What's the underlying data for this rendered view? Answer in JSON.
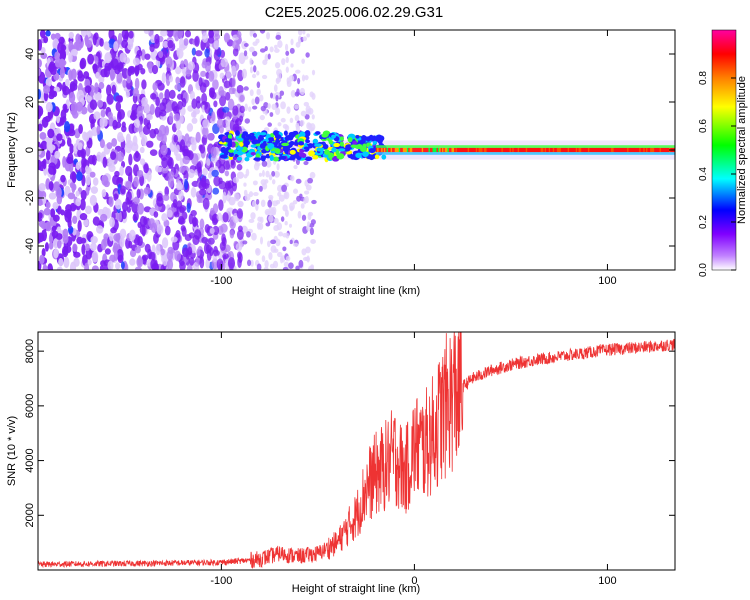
{
  "title": "C2E5.2025.006.02.29.G31",
  "chart_data": [
    {
      "type": "heatmap",
      "xlabel": "Height of straight line (km)",
      "ylabel": "Frequency (Hz)",
      "xlim": [
        -195,
        135
      ],
      "ylim": [
        -50,
        50
      ],
      "xticks": [
        -100,
        0,
        100
      ],
      "xtick_labels": [
        "-100",
        "",
        "100"
      ],
      "yticks": [
        -40,
        -20,
        0,
        20,
        40
      ],
      "ytick_labels": [
        "-40",
        "-20",
        "0",
        "20",
        "40"
      ],
      "grid": false,
      "colorbar": {
        "label": "Normalized spectral amplitude",
        "range": [
          0,
          1
        ],
        "ticks": [
          0.0,
          0.2,
          0.4,
          0.6,
          0.8
        ],
        "tick_labels": [
          "0.0",
          "0.2",
          "0.4",
          "0.6",
          "0.8"
        ],
        "colormap": [
          "#ffffff",
          "#8000ff",
          "#0000ff",
          "#00ffff",
          "#00ff00",
          "#ffff00",
          "#ff8000",
          "#ff0000",
          "#ff00a0"
        ]
      },
      "features": {
        "noise_region_x": [
          -195,
          -88
        ],
        "faint_noise_region_x": [
          -88,
          -52
        ],
        "signal_line_frequency": 0,
        "signal_onset_x": -100,
        "strong_signal_from_x": -20
      }
    },
    {
      "type": "line",
      "xlabel": "Height of straight line (km)",
      "ylabel": "SNR (10 * v/v)",
      "xlim": [
        -195,
        135
      ],
      "ylim": [
        0,
        8700
      ],
      "xticks": [
        -100,
        0,
        100
      ],
      "xtick_labels": [
        "-100",
        "0",
        "100"
      ],
      "yticks": [
        2000,
        4000,
        6000,
        8000
      ],
      "ytick_labels": [
        "2000",
        "4000",
        "6000",
        "8000"
      ],
      "grid": false,
      "color": "#ee3333",
      "series": [
        {
          "x": [
            -195,
            -180,
            -160,
            -140,
            -120,
            -100,
            -90,
            -80,
            -70,
            -60,
            -50,
            -40,
            -30,
            -25,
            -20,
            -15,
            -10,
            -5,
            0,
            5,
            10,
            15,
            20,
            30,
            40,
            50,
            60,
            70,
            80,
            90,
            100,
            110,
            120,
            135
          ],
          "y": [
            200,
            220,
            230,
            240,
            260,
            280,
            330,
            400,
            600,
            500,
            600,
            1000,
            2000,
            3000,
            3500,
            3800,
            4200,
            3500,
            4500,
            4500,
            5000,
            5800,
            6400,
            7000,
            7300,
            7500,
            7650,
            7750,
            7850,
            7950,
            8050,
            8100,
            8150,
            8250
          ]
        }
      ]
    }
  ]
}
